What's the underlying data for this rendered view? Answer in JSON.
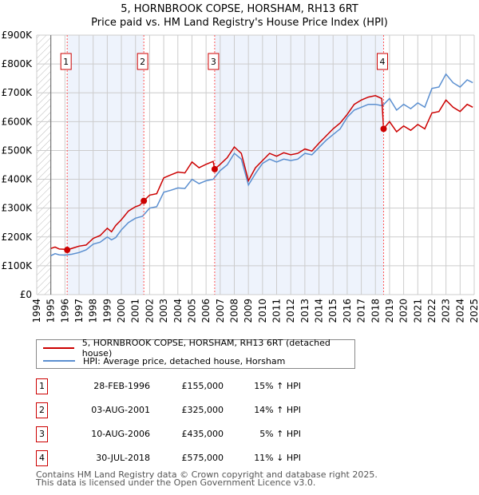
{
  "header": {
    "title": "5, HORNBROOK COPSE, HORSHAM, RH13 6RT",
    "subtitle": "Price paid vs. HM Land Registry's House Price Index (HPI)"
  },
  "chart_data": {
    "type": "line",
    "title": "5, HORNBROOK COPSE, HORSHAM, RH13 6RT",
    "subtitle": "Price paid vs. HM Land Registry's House Price Index (HPI)",
    "xlim": [
      1994,
      2025
    ],
    "ylim": [
      0,
      900000
    ],
    "x_ticks": [
      "1994",
      "1995",
      "1996",
      "1997",
      "1998",
      "1999",
      "2000",
      "2001",
      "2002",
      "2003",
      "2004",
      "2005",
      "2006",
      "2007",
      "2008",
      "2009",
      "2010",
      "2011",
      "2012",
      "2013",
      "2014",
      "2015",
      "2016",
      "2017",
      "2018",
      "2019",
      "2020",
      "2021",
      "2022",
      "2023",
      "2024",
      "2025"
    ],
    "y_ticks": [
      {
        "v": 0,
        "label": "£0"
      },
      {
        "v": 100000,
        "label": "£100K"
      },
      {
        "v": 200000,
        "label": "£200K"
      },
      {
        "v": 300000,
        "label": "£300K"
      },
      {
        "v": 400000,
        "label": "£400K"
      },
      {
        "v": 500000,
        "label": "£500K"
      },
      {
        "v": 600000,
        "label": "£600K"
      },
      {
        "v": 700000,
        "label": "£700K"
      },
      {
        "v": 800000,
        "label": "£800K"
      },
      {
        "v": 900000,
        "label": "£900K"
      }
    ],
    "grid": true,
    "series": [
      {
        "name": "5, HORNBROOK COPSE, HORSHAM, RH13 6RT (detached house)",
        "color": "#cc0000",
        "x": [
          1995,
          1995.3,
          1995.6,
          1996,
          1996.16,
          1996.6,
          1997,
          1997.5,
          1998,
          1998.5,
          1999,
          1999.3,
          1999.6,
          2000,
          2000.5,
          2001,
          2001.3,
          2001.59,
          2002,
          2002.5,
          2003,
          2003.5,
          2004,
          2004.5,
          2005,
          2005.5,
          2006,
          2006.5,
          2006.61,
          2007,
          2007.5,
          2008,
          2008.5,
          2009,
          2009.5,
          2010,
          2010.5,
          2011,
          2011.5,
          2012,
          2012.5,
          2013,
          2013.5,
          2014,
          2014.5,
          2015,
          2015.5,
          2016,
          2016.5,
          2017,
          2017.5,
          2018,
          2018.45,
          2018.58,
          2019,
          2019.5,
          2020,
          2020.5,
          2021,
          2021.5,
          2022,
          2022.5,
          2023,
          2023.5,
          2024,
          2024.5,
          2024.9
        ],
        "y": [
          160000,
          165000,
          158000,
          157000,
          155000,
          162000,
          168000,
          172000,
          195000,
          205000,
          230000,
          218000,
          240000,
          260000,
          290000,
          305000,
          310000,
          325000,
          345000,
          350000,
          405000,
          415000,
          425000,
          422000,
          460000,
          440000,
          452000,
          462000,
          435000,
          452000,
          475000,
          512000,
          490000,
          395000,
          440000,
          465000,
          490000,
          480000,
          492000,
          485000,
          490000,
          505000,
          498000,
          525000,
          550000,
          575000,
          595000,
          625000,
          660000,
          675000,
          685000,
          690000,
          680000,
          575000,
          600000,
          565000,
          585000,
          570000,
          590000,
          575000,
          630000,
          635000,
          675000,
          650000,
          635000,
          660000,
          650000
        ]
      },
      {
        "name": "HPI: Average price, detached house, Horsham",
        "color": "#5b8fd0",
        "x": [
          1995,
          1995.3,
          1995.6,
          1996,
          1996.5,
          1997,
          1997.5,
          1998,
          1998.5,
          1999,
          1999.3,
          1999.6,
          2000,
          2000.5,
          2001,
          2001.5,
          2002,
          2002.5,
          2003,
          2003.5,
          2004,
          2004.5,
          2005,
          2005.5,
          2006,
          2006.5,
          2007,
          2007.5,
          2008,
          2008.5,
          2009,
          2009.5,
          2010,
          2010.5,
          2011,
          2011.5,
          2012,
          2012.5,
          2013,
          2013.5,
          2014,
          2014.5,
          2015,
          2015.5,
          2016,
          2016.5,
          2017,
          2017.5,
          2018,
          2018.5,
          2019,
          2019.5,
          2020,
          2020.5,
          2021,
          2021.5,
          2022,
          2022.5,
          2023,
          2023.5,
          2024,
          2024.5,
          2024.9
        ],
        "y": [
          135000,
          142000,
          138000,
          137000,
          140000,
          146000,
          155000,
          175000,
          182000,
          200000,
          190000,
          198000,
          225000,
          250000,
          265000,
          272000,
          300000,
          305000,
          355000,
          362000,
          370000,
          368000,
          400000,
          385000,
          395000,
          400000,
          430000,
          450000,
          490000,
          470000,
          380000,
          420000,
          455000,
          470000,
          460000,
          470000,
          465000,
          470000,
          490000,
          485000,
          510000,
          535000,
          555000,
          575000,
          615000,
          640000,
          650000,
          660000,
          660000,
          655000,
          680000,
          640000,
          660000,
          645000,
          665000,
          650000,
          715000,
          720000,
          765000,
          735000,
          720000,
          745000,
          735000
        ]
      }
    ],
    "sales": [
      {
        "marker": "1",
        "x": 1996.16,
        "date": "28-FEB-1996",
        "price": 155000,
        "price_label": "£155,000",
        "hpi": "15% ↑ HPI"
      },
      {
        "marker": "2",
        "x": 2001.59,
        "date": "03-AUG-2001",
        "price": 325000,
        "price_label": "£325,000",
        "hpi": "14% ↑ HPI"
      },
      {
        "marker": "3",
        "x": 2006.61,
        "date": "10-AUG-2006",
        "price": 435000,
        "price_label": "£435,000",
        "hpi": "5% ↑ HPI"
      },
      {
        "marker": "4",
        "x": 2018.58,
        "date": "30-JUL-2018",
        "price": 575000,
        "price_label": "£575,000",
        "hpi": "11% ↓ HPI"
      }
    ],
    "shaded_ranges": [
      [
        1996.16,
        2001.59
      ],
      [
        2006.61,
        2018.58
      ]
    ],
    "hatched_range": [
      1994,
      1995
    ],
    "legend_placement": "below"
  },
  "legend": {
    "items": [
      {
        "label": "5, HORNBROOK COPSE, HORSHAM, RH13 6RT (detached house)"
      },
      {
        "label": "HPI: Average price, detached house, Horsham"
      }
    ]
  },
  "footer": {
    "line1": "Contains HM Land Registry data © Crown copyright and database right 2025.",
    "line2": "This data is licensed under the Open Government Licence v3.0."
  }
}
